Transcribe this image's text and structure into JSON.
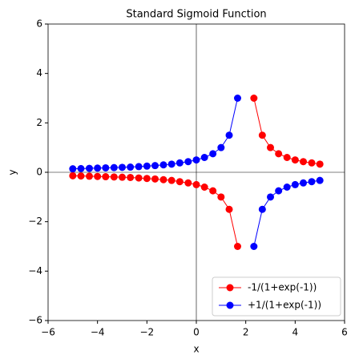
{
  "chart_data": {
    "type": "line",
    "title": "Standard Sigmoid Function",
    "x_label": "x",
    "y_label": "y",
    "x": [
      -5,
      -4.67,
      -4.33,
      -4,
      -3.67,
      -3.33,
      -3,
      -2.67,
      -2.33,
      -2,
      -1.67,
      -1.33,
      -1,
      -0.67,
      -0.33,
      0,
      0.33,
      0.67,
      1,
      1.33,
      1.67,
      2,
      2.33,
      2.67,
      3,
      3.33,
      3.67,
      4,
      4.33,
      4.67,
      5
    ],
    "series": [
      {
        "name": "-1/(1+exp(-1))",
        "color": "#ff0000",
        "values": [
          -0.14,
          -0.15,
          -0.16,
          -0.17,
          -0.18,
          -0.19,
          -0.2,
          -0.21,
          -0.23,
          -0.25,
          -0.27,
          -0.3,
          -0.33,
          -0.38,
          -0.43,
          -0.5,
          -0.6,
          -0.75,
          -1,
          -1.5,
          -3,
          null,
          3,
          1.5,
          1,
          0.75,
          0.6,
          0.5,
          0.43,
          0.38,
          0.33
        ]
      },
      {
        "name": "+1/(1+exp(-1))",
        "color": "#0000ff",
        "values": [
          0.14,
          0.15,
          0.16,
          0.17,
          0.18,
          0.19,
          0.2,
          0.21,
          0.23,
          0.25,
          0.27,
          0.3,
          0.33,
          0.38,
          0.43,
          0.5,
          0.6,
          0.75,
          1,
          1.5,
          3,
          null,
          -3,
          -1.5,
          -1,
          -0.75,
          -0.6,
          -0.5,
          -0.43,
          -0.38,
          -0.33
        ]
      }
    ],
    "xlim": [
      -6,
      6
    ],
    "ylim": [
      -6,
      6
    ],
    "xticks": [
      {
        "value": -6,
        "label": "−6"
      },
      {
        "value": -4,
        "label": "−4"
      },
      {
        "value": -2,
        "label": "−2"
      },
      0,
      2,
      4,
      6
    ],
    "yticks": [
      {
        "value": -6,
        "label": "−6"
      },
      {
        "value": -4,
        "label": "−4"
      },
      {
        "value": -2,
        "label": "−2"
      },
      0,
      2,
      4,
      6
    ],
    "zero_lines": true,
    "grid": false,
    "legend": "lower right"
  }
}
